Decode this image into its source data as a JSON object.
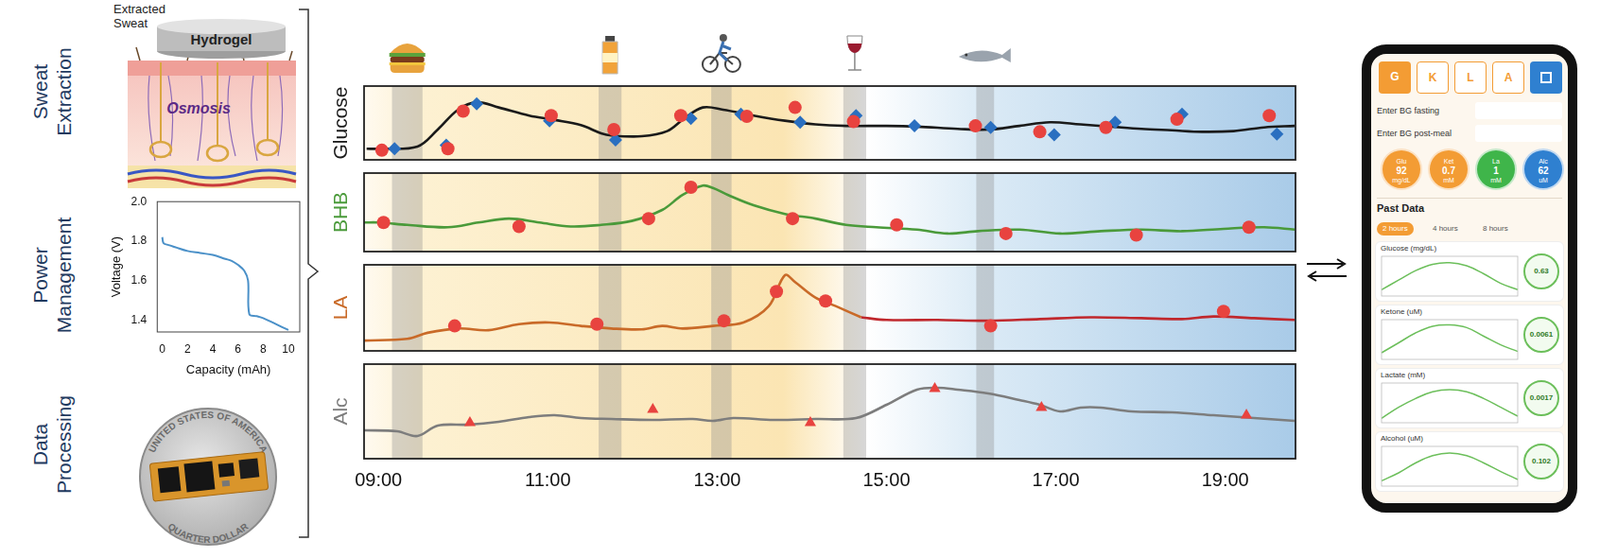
{
  "row_labels": [
    "Sweat Extraction",
    "Power Management",
    "Data Processing"
  ],
  "sweat_extraction": {
    "sweat": "Extracted Sweat",
    "gel": "Hydrogel",
    "process": "Osmosis"
  },
  "coin": {
    "top": "UNITED STATES OF AMERICA",
    "bottom": "QUARTER DOLLAR"
  },
  "timeline_events": [
    [
      9.16,
      9.52
    ],
    [
      11.6,
      11.87
    ],
    [
      12.93,
      13.17
    ],
    [
      14.49,
      14.76
    ],
    [
      16.06,
      16.27
    ]
  ],
  "chart_data": [
    {
      "type": "line",
      "x_label": "Capacity (mAh)",
      "y_label": "Voltage (V)",
      "xlim": [
        -0.4,
        10.9
      ],
      "xticks": [
        0,
        2,
        4,
        6,
        8,
        10
      ],
      "ylim": [
        1.34,
        2.0
      ],
      "yticks": [
        1.4,
        1.6,
        1.8,
        {
          "value": 2,
          "label": "2.0"
        }
      ],
      "grid": false,
      "series": [
        {
          "color": "#4a90c8",
          "x": [
            0,
            0.1,
            0.5,
            1,
            2,
            3,
            4,
            5,
            5.5,
            6,
            6.5,
            6.8,
            6.9,
            7.5,
            8,
            9,
            10
          ],
          "values": [
            1.82,
            1.79,
            1.78,
            1.77,
            1.75,
            1.74,
            1.73,
            1.71,
            1.7,
            1.68,
            1.65,
            1.6,
            1.43,
            1.42,
            1.41,
            1.38,
            1.35
          ]
        }
      ]
    },
    {
      "type": "line",
      "y_label": "Glucose",
      "xlim": [
        8.83,
        19.83
      ],
      "xticks": [
        {
          "value": 9,
          "label": "09:00"
        },
        {
          "value": 11,
          "label": "11:00"
        },
        {
          "value": 13,
          "label": "13:00"
        },
        {
          "value": 15,
          "label": "15:00"
        },
        {
          "value": 17,
          "label": "17:00"
        },
        {
          "value": 19,
          "label": "19:00"
        }
      ],
      "ylim": [
        0,
        100
      ],
      "tick_labels": false,
      "grid": false,
      "series": [
        {
          "type": "line",
          "color": "#1a1a1a",
          "x": [
            8.86,
            9.0,
            9.46,
            9.7,
            9.94,
            10.16,
            10.42,
            10.78,
            11.08,
            11.39,
            11.63,
            11.75,
            12.11,
            12.41,
            12.61,
            12.83,
            13.07,
            13.43,
            13.8,
            14.16,
            14.52,
            15.0,
            15.36,
            15.84,
            16.2,
            16.57,
            16.93,
            17.29,
            17.65,
            18.01,
            18.37,
            18.73,
            19.1,
            19.46,
            19.82
          ],
          "values": [
            15,
            15,
            18,
            41,
            68,
            78,
            71,
            60,
            54,
            47,
            36,
            33,
            32,
            39,
            56,
            71,
            68,
            60,
            53,
            48,
            46,
            46,
            45,
            42,
            41,
            46,
            51,
            48,
            45,
            42,
            40,
            38,
            39,
            44,
            46
          ]
        },
        {
          "type": "scatter",
          "color": "#e8433f",
          "marker": "circle",
          "x": [
            9.04,
            9.82,
            10.0,
            11.04,
            11.78,
            12.57,
            13.35,
            13.92,
            14.61,
            16.05,
            16.81,
            17.59,
            18.43,
            19.52
          ],
          "values": [
            13,
            15,
            66,
            60,
            41,
            60,
            59,
            71,
            52,
            46,
            38,
            44,
            55,
            60
          ]
        },
        {
          "type": "scatter",
          "color": "#2a6fc0",
          "marker": "diamond",
          "x": [
            9.19,
            9.8,
            10.16,
            11.02,
            11.8,
            12.69,
            13.28,
            13.98,
            14.64,
            15.33,
            16.23,
            16.98,
            17.7,
            18.49,
            19.61
          ],
          "values": [
            15,
            20,
            76,
            53,
            27,
            56,
            62,
            51,
            60,
            46,
            44,
            34,
            51,
            62,
            35
          ]
        }
      ]
    },
    {
      "type": "line",
      "y_label": "BHB",
      "xlim": [
        8.83,
        19.83
      ],
      "xticks": [
        {
          "value": 9,
          "label": "09:00"
        },
        {
          "value": 11,
          "label": "11:00"
        },
        {
          "value": 13,
          "label": "13:00"
        },
        {
          "value": 15,
          "label": "15:00"
        },
        {
          "value": 17,
          "label": "17:00"
        },
        {
          "value": 19,
          "label": "19:00"
        }
      ],
      "ylim": [
        0,
        100
      ],
      "tick_labels": false,
      "grid": false,
      "series": [
        {
          "type": "line",
          "color": "#4a9a3a",
          "x": [
            8.83,
            9.0,
            9.34,
            9.82,
            10.18,
            10.54,
            10.9,
            11.27,
            11.63,
            11.99,
            12.35,
            12.59,
            12.83,
            12.95,
            13.13,
            13.43,
            13.8,
            14.16,
            14.52,
            14.88,
            15.36,
            15.72,
            16.08,
            16.57,
            17.05,
            17.53,
            18.01,
            18.49,
            18.98,
            19.46,
            19.82
          ],
          "values": [
            37,
            37,
            34,
            31,
            37,
            42,
            37,
            32,
            34,
            39,
            53,
            72,
            84,
            81,
            72,
            59,
            48,
            42,
            34,
            31,
            28,
            23,
            26,
            28,
            23,
            26,
            28,
            26,
            29,
            31,
            28
          ]
        },
        {
          "type": "scatter",
          "color": "#e8433f",
          "marker": "circle",
          "x": [
            9.06,
            10.66,
            12.19,
            12.69,
            13.89,
            15.12,
            16.41,
            17.95,
            19.28
          ],
          "values": [
            37,
            32,
            42,
            82,
            42,
            34,
            23,
            21,
            31
          ]
        }
      ]
    },
    {
      "type": "line",
      "y_label": "LA",
      "xlim": [
        8.83,
        19.83
      ],
      "xticks": [
        {
          "value": 9,
          "label": "09:00"
        },
        {
          "value": 11,
          "label": "11:00"
        },
        {
          "value": 13,
          "label": "13:00"
        },
        {
          "value": 15,
          "label": "15:00"
        },
        {
          "value": 17,
          "label": "17:00"
        },
        {
          "value": 19,
          "label": "19:00"
        }
      ],
      "ylim": [
        0,
        100
      ],
      "tick_labels": false,
      "grid": false,
      "series": [
        {
          "type": "line",
          "color": "#c96a28",
          "x": [
            8.83,
            9.34,
            9.58,
            9.94,
            10.3,
            10.66,
            11.02,
            11.39,
            11.75,
            12.11,
            12.35,
            12.59,
            12.95,
            13.31,
            13.61,
            13.8,
            13.92,
            14.16,
            14.4,
            14.7
          ],
          "values": [
            12,
            14,
            21,
            26,
            24,
            31,
            33,
            29,
            26,
            25,
            29,
            26,
            29,
            33,
            52,
            88,
            80,
            62,
            52,
            39
          ]
        },
        {
          "type": "line",
          "color": "#c0282d",
          "x": [
            14.7,
            15.0,
            15.6,
            16.2,
            16.81,
            17.41,
            18.01,
            18.49,
            18.86,
            19.34,
            19.82
          ],
          "values": [
            39,
            36,
            36,
            35,
            37,
            39,
            38,
            37,
            40,
            38,
            36
          ]
        },
        {
          "type": "scatter",
          "color": "#e8433f",
          "marker": "circle",
          "x": [
            9.9,
            11.58,
            13.08,
            13.7,
            14.28,
            16.23,
            18.98
          ],
          "values": [
            29,
            31,
            35,
            69,
            58,
            29,
            46
          ]
        }
      ]
    },
    {
      "type": "line",
      "y_label": "Alc",
      "xlim": [
        8.83,
        19.83
      ],
      "xticks": [
        {
          "value": 9,
          "label": "09:00"
        },
        {
          "value": 11,
          "label": "11:00"
        },
        {
          "value": 13,
          "label": "13:00"
        },
        {
          "value": 15,
          "label": "15:00"
        },
        {
          "value": 17,
          "label": "17:00"
        },
        {
          "value": 19,
          "label": "19:00"
        }
      ],
      "ylim": [
        0,
        100
      ],
      "tick_labels": "x",
      "grid": false,
      "series": [
        {
          "type": "line",
          "color": "#7d7d7d",
          "x": [
            8.83,
            9.22,
            9.46,
            9.7,
            10.06,
            10.42,
            10.78,
            11.08,
            11.39,
            11.75,
            12.23,
            12.71,
            12.95,
            13.19,
            13.67,
            14.16,
            14.64,
            15.0,
            15.36,
            15.6,
            15.84,
            16.2,
            16.57,
            16.81,
            17.05,
            17.29,
            17.53,
            17.89,
            18.37,
            18.86,
            19.34,
            19.82
          ],
          "values": [
            30,
            29,
            24,
            35,
            36,
            39,
            44,
            46,
            43,
            42,
            41,
            42,
            40,
            43,
            41,
            42,
            43,
            57,
            73,
            75,
            73,
            69,
            62,
            57,
            50,
            54,
            54,
            50,
            49,
            46,
            43,
            40
          ]
        },
        {
          "type": "scatter",
          "color": "#e8433f",
          "marker": "triangle",
          "x": [
            10.08,
            12.24,
            14.1,
            15.57,
            16.83,
            19.25
          ],
          "values": [
            38,
            52,
            38,
            74,
            54,
            46
          ]
        }
      ]
    }
  ],
  "phone": {
    "tabs": [
      "G",
      "K",
      "L",
      "A"
    ],
    "inputs": [
      "Enter BG fasting",
      "Enter BG post-meal"
    ],
    "gauges": [
      {
        "label": "Glu",
        "value": 92,
        "unit": "mg/dL",
        "color": "#f39c34"
      },
      {
        "label": "Ket",
        "value": 0.7,
        "unit": "mM",
        "color": "#f39c34"
      },
      {
        "label": "La",
        "value": 1,
        "unit": "mM",
        "color": "#3fb54a"
      },
      {
        "label": "Alc",
        "value": 62,
        "unit": "uM",
        "color": "#2f80d0"
      }
    ],
    "section": "Past Data",
    "ranges": [
      "2 hours",
      "4 hours",
      "8 hours"
    ],
    "panels": [
      {
        "title": "Glucose (mg/dL)",
        "rate": 0.63,
        "chart": {
          "type": "line",
          "color": "#6cbf5b",
          "tick_labels": false,
          "categories": [
            null,
            null,
            null,
            null,
            null,
            null,
            null,
            null,
            null
          ],
          "values": [
            84,
            90,
            96,
            100,
            101,
            99,
            94,
            88,
            84
          ],
          "ylim": [
            80,
            105
          ]
        }
      },
      {
        "title": "Ketone (uM)",
        "rate": 0.0061,
        "chart": {
          "type": "line",
          "color": "#6cbf5b",
          "tick_labels": false,
          "categories": [
            null,
            null,
            null,
            null,
            null,
            null,
            null,
            null,
            null
          ],
          "values": [
            0.3,
            0.45,
            0.6,
            0.7,
            0.72,
            0.68,
            0.55,
            0.42,
            0.32
          ],
          "ylim": [
            0.2,
            0.8
          ]
        }
      },
      {
        "title": "Lactate (mM)",
        "rate": 0.0017,
        "chart": {
          "type": "line",
          "color": "#6cbf5b",
          "tick_labels": false,
          "categories": [
            null,
            null,
            null,
            null,
            null,
            null,
            null,
            null,
            null
          ],
          "values": [
            0.6,
            0.85,
            1.05,
            1.2,
            1.25,
            1.2,
            1.05,
            0.85,
            0.65
          ],
          "ylim": [
            0.5,
            1.4
          ]
        }
      },
      {
        "title": "Alcohol (uM)",
        "rate": 0.102,
        "chart": {
          "type": "line",
          "color": "#6cbf5b",
          "tick_labels": false,
          "categories": [
            null,
            null,
            null,
            null,
            null,
            null,
            null,
            null,
            null
          ],
          "values": [
            28,
            40,
            55,
            66,
            70,
            66,
            55,
            42,
            30
          ],
          "ylim": [
            20,
            80
          ]
        }
      }
    ]
  }
}
